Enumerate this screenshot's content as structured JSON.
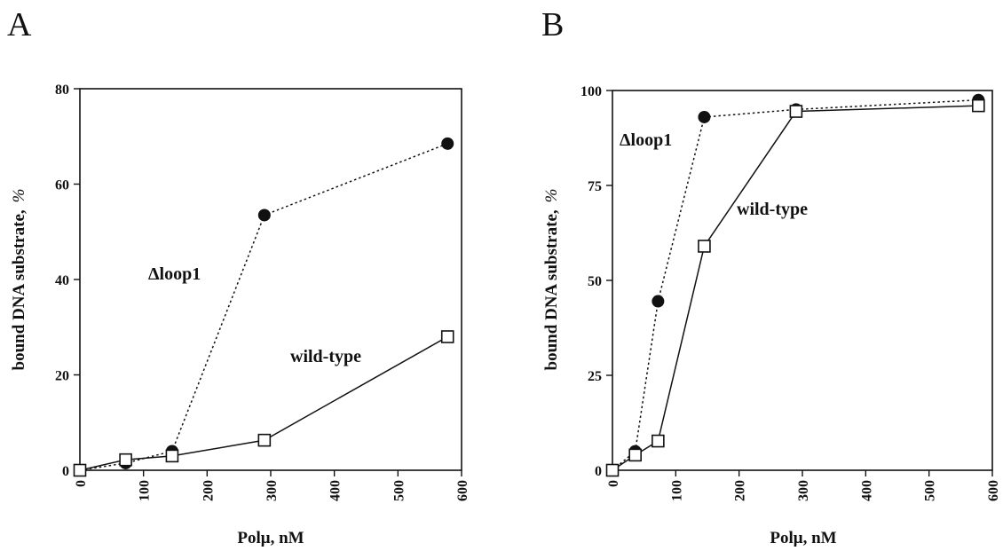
{
  "chart_data": [
    {
      "panel": "A",
      "type": "line",
      "xlabel": "Polμ,  nM",
      "ylabel": "bound DNA substrate,",
      "ylabel_unit": "%",
      "xlim": [
        0,
        600
      ],
      "ylim": [
        0,
        80
      ],
      "xticks": [
        "0",
        "100",
        "200",
        "300",
        "400",
        "500",
        "600"
      ],
      "yticks": [
        "0",
        "20",
        "40",
        "60",
        "80"
      ],
      "grid": false,
      "series": [
        {
          "name": "Δloop1",
          "style": "dotted",
          "marker": "filled-circle",
          "points": [
            [
              0,
              0
            ],
            [
              72,
              1.5
            ],
            [
              145,
              4
            ],
            [
              290,
              53.5
            ],
            [
              578,
              68.5
            ]
          ]
        },
        {
          "name": "wild-type",
          "style": "solid",
          "marker": "open-square",
          "points": [
            [
              0,
              0
            ],
            [
              72,
              2.2
            ],
            [
              145,
              3
            ],
            [
              290,
              6.3
            ],
            [
              578,
              28
            ]
          ]
        }
      ]
    },
    {
      "panel": "B",
      "type": "line",
      "xlabel": "Polμ,  nM",
      "ylabel": "bound DNA substrate,",
      "ylabel_unit": "%",
      "xlim": [
        0,
        600
      ],
      "ylim": [
        0,
        100
      ],
      "xticks": [
        "0",
        "100",
        "200",
        "300",
        "400",
        "500",
        "600"
      ],
      "yticks": [
        "0",
        "25",
        "50",
        "75",
        "100"
      ],
      "grid": false,
      "series": [
        {
          "name": "Δloop1",
          "style": "dotted",
          "marker": "filled-circle",
          "points": [
            [
              0,
              0
            ],
            [
              36,
              5
            ],
            [
              72,
              44.5
            ],
            [
              145,
              93
            ],
            [
              290,
              95
            ],
            [
              578,
              97.5
            ]
          ]
        },
        {
          "name": "wild-type",
          "style": "solid",
          "marker": "open-square",
          "points": [
            [
              0,
              0
            ],
            [
              36,
              4
            ],
            [
              72,
              7.7
            ],
            [
              145,
              59
            ],
            [
              290,
              94.5
            ],
            [
              578,
              96
            ]
          ]
        }
      ]
    }
  ],
  "colors": {
    "ink": "#111111",
    "background": "#ffffff"
  }
}
